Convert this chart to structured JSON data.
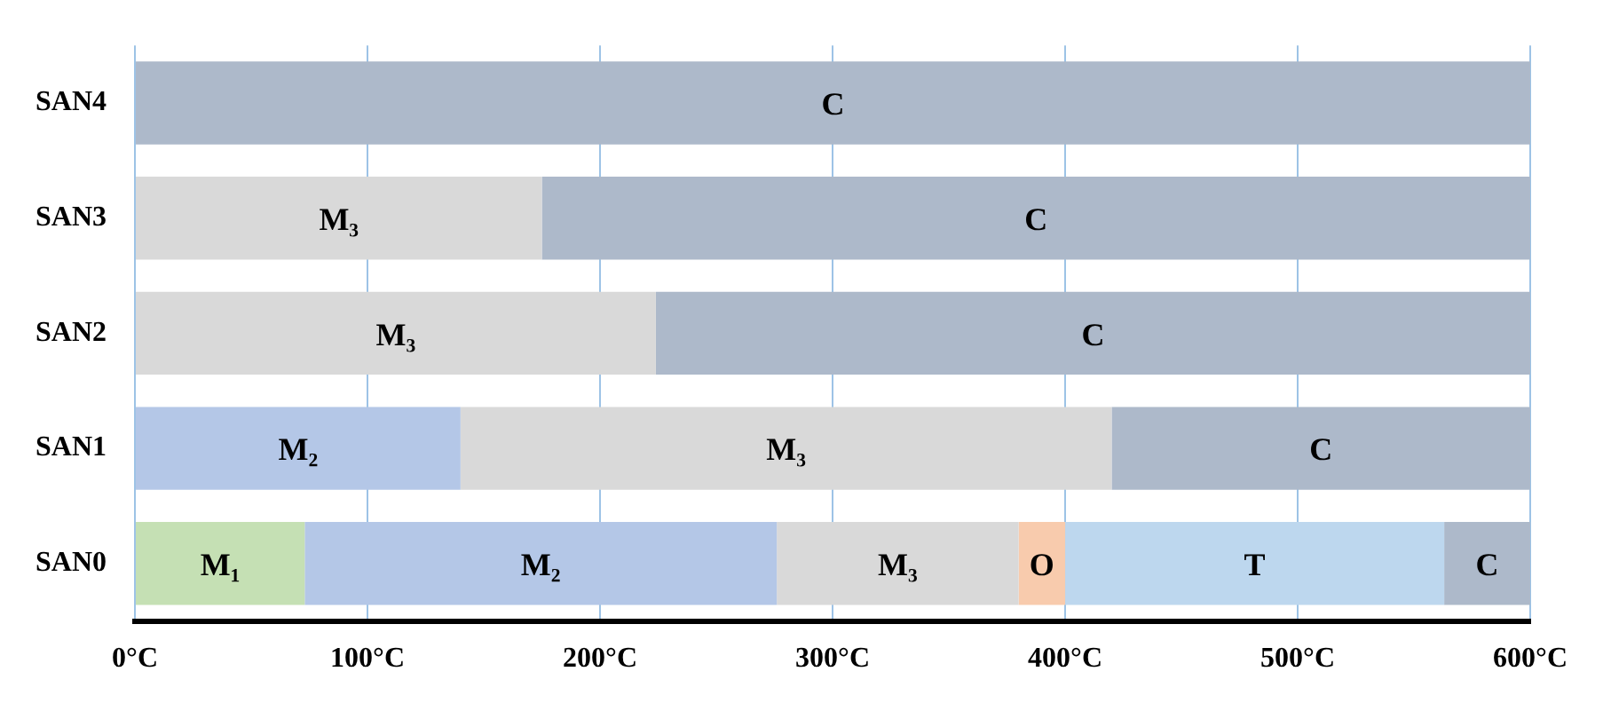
{
  "chart_data": {
    "type": "bar",
    "orientation": "horizontal",
    "stacked": true,
    "grid": "x",
    "legend": false,
    "categories": [
      "SAN4",
      "SAN3",
      "SAN2",
      "SAN1",
      "SAN0"
    ],
    "xlim": [
      0,
      600
    ],
    "xticks": [
      {
        "value": 0,
        "label": "0°C"
      },
      {
        "value": 100,
        "label": "100°C"
      },
      {
        "value": 200,
        "label": "200°C"
      },
      {
        "value": 300,
        "label": "300°C"
      },
      {
        "value": 400,
        "label": "400°C"
      },
      {
        "value": 500,
        "label": "500°C"
      },
      {
        "value": 600,
        "label": "600°C"
      }
    ],
    "series": [
      {
        "values": [
          600,
          175,
          224,
          140,
          73
        ],
        "colors": [
          "#adb9ca",
          "#d9d9d9",
          "#d9d9d9",
          "#b4c7e7",
          "#c5e0b4"
        ],
        "value_labels": [
          "C",
          "M₃",
          "M₃",
          "M₂",
          "M₁"
        ]
      },
      {
        "values": [
          null,
          425,
          376,
          280,
          203
        ],
        "colors": [
          "#adb9ca",
          "#adb9ca",
          "#adb9ca",
          "#d9d9d9",
          "#b4c7e7"
        ],
        "value_labels": [
          null,
          "C",
          "C",
          "M₃",
          "M₂"
        ]
      },
      {
        "values": [
          null,
          null,
          null,
          180,
          104
        ],
        "colors": [
          "#adb9ca",
          "#adb9ca",
          "#adb9ca",
          "#adb9ca",
          "#d9d9d9"
        ],
        "value_labels": [
          null,
          null,
          null,
          "C",
          "M₃"
        ]
      },
      {
        "values": [
          null,
          null,
          null,
          null,
          20
        ],
        "colors": [
          "#f8cbad",
          "#f8cbad",
          "#f8cbad",
          "#f8cbad",
          "#f8cbad"
        ],
        "value_labels": [
          null,
          null,
          null,
          null,
          "O"
        ]
      },
      {
        "values": [
          null,
          null,
          null,
          null,
          163
        ],
        "colors": [
          "#bdd7ee",
          "#bdd7ee",
          "#bdd7ee",
          "#bdd7ee",
          "#bdd7ee"
        ],
        "value_labels": [
          null,
          null,
          null,
          null,
          "T"
        ]
      },
      {
        "values": [
          null,
          null,
          null,
          null,
          37
        ],
        "colors": [
          "#adb9ca",
          "#adb9ca",
          "#adb9ca",
          "#adb9ca",
          "#adb9ca"
        ],
        "value_labels": [
          null,
          null,
          null,
          null,
          "C"
        ]
      }
    ]
  }
}
